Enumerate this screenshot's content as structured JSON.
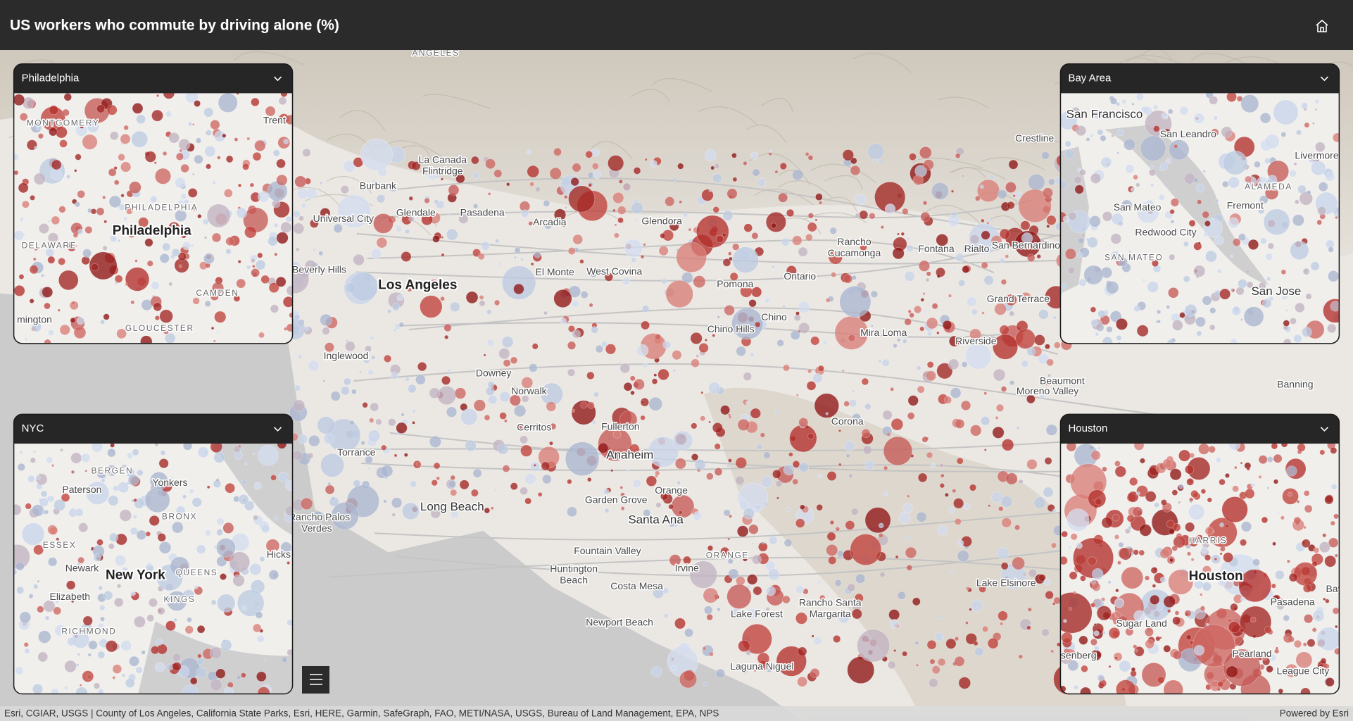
{
  "header": {
    "title": "US workers who commute by driving alone (%)"
  },
  "map": {
    "labels": [
      "ANGELES",
      "La Canada",
      "Flintridge",
      "Burbank",
      "Glendale",
      "Pasadena",
      "Universal City",
      "Arcadia",
      "Glendora",
      "Crestline",
      "Beverly Hills",
      "Los Angeles",
      "El Monte",
      "West Covina",
      "Pomona",
      "Ontario",
      "Rancho",
      "Cucamonga",
      "Fontana",
      "Rialto",
      "San Bernardino",
      "Grand Terrace",
      "Chino",
      "Chino Hills",
      "Mira Loma",
      "Riverside",
      "Inglewood",
      "Downey",
      "Norwalk",
      "Moreno Valley",
      "Beaumont",
      "Banning",
      "Cerritos",
      "Fullerton",
      "Corona",
      "Anaheim",
      "Torrance",
      "Orange",
      "Garden Grove",
      "Long Beach",
      "Santa Ana",
      "Rancho Palos",
      "Verdes",
      "Fountain Valley",
      "ORANGE",
      "Huntington",
      "Beach",
      "Irvine",
      "Costa Mesa",
      "Lake Elsinore",
      "Rancho Santa",
      "Margarita",
      "Lake Forest",
      "Newport Beach",
      "Laguna Niguel"
    ]
  },
  "insets": [
    {
      "title": "Philadelphia",
      "labels": [
        "MONTGOMERY",
        "Trent",
        "PHILADELPHIA",
        "Philadelphia",
        "DELAWARE",
        "CAMDEN",
        "GLOUCESTER",
        "mington"
      ]
    },
    {
      "title": "Bay Area",
      "labels": [
        "San Francisco",
        "San Leandro",
        "Livermore",
        "ALAMEDA",
        "San Mateo",
        "Fremont",
        "Redwood City",
        "SAN MATEO",
        "San Jose"
      ]
    },
    {
      "title": "NYC",
      "labels": [
        "BERGEN",
        "Yonkers",
        "Paterson",
        "BRONX",
        "ESSEX",
        "Newark",
        "New York",
        "QUEENS",
        "Elizabeth",
        "KINGS",
        "RICHMOND",
        "Hicks"
      ]
    },
    {
      "title": "Houston",
      "labels": [
        "HARRIS",
        "Houston",
        "Pasadena",
        "Sugar Land",
        "Pearland",
        "League City",
        "Bayt",
        "senberg"
      ]
    }
  ],
  "attribution": "Esri, CGIAR, USGS | County of Los Angeles, California State Parks, Esri, HERE, Garmin, SafeGraph, FAO, METI/NASA, USGS, Bureau of Land Management, EPA, NPS",
  "powered_by": "Powered by Esri"
}
